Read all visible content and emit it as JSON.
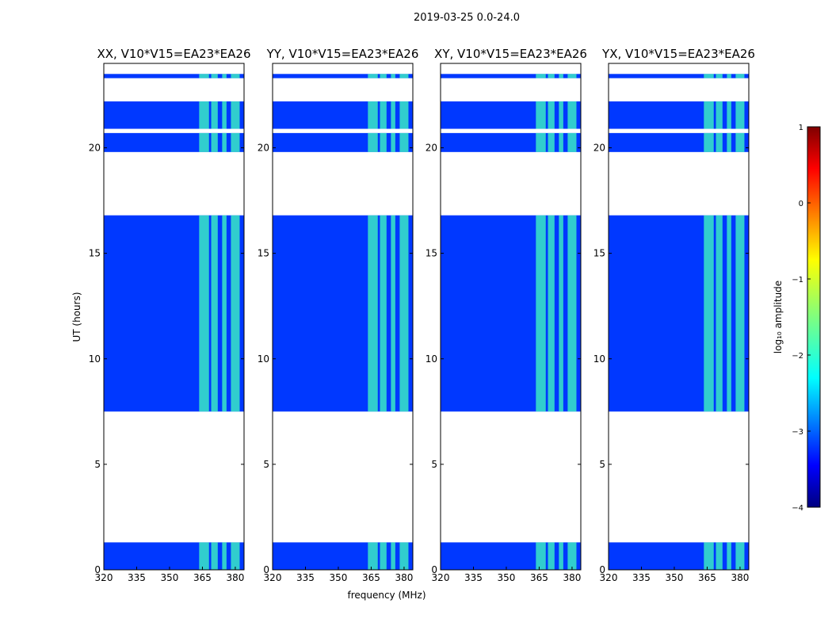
{
  "chart_data": {
    "type": "heatmap",
    "suptitle": "2019-03-25 0.0-24.0",
    "xlabel": "frequency (MHz)",
    "ylabel": "UT (hours)",
    "xlim": [
      320,
      384
    ],
    "ylim": [
      0,
      24
    ],
    "xticks": [
      320,
      335,
      350,
      365,
      380
    ],
    "yticks": [
      0,
      5,
      10,
      15,
      20
    ],
    "colorbar": {
      "label": "log₁₀ amplitude",
      "range": [
        -4,
        1
      ],
      "ticks": [
        1,
        0,
        -1,
        -2,
        -3,
        -4
      ],
      "colormap": [
        "#00007f",
        "#0000ff",
        "#007fff",
        "#00ffff",
        "#7fff7f",
        "#ffff00",
        "#ff7f00",
        "#ff0000",
        "#7f0000"
      ]
    },
    "panels": [
      {
        "title": "XX, V10*V15=EA23*EA26",
        "polarization": "XX"
      },
      {
        "title": "YY, V10*V15=EA23*EA26",
        "polarization": "YY"
      },
      {
        "title": "XY, V10*V15=EA23*EA26",
        "polarization": "XY"
      },
      {
        "title": "YX, V10*V15=EA23*EA26",
        "polarization": "YX"
      }
    ],
    "data_time_ranges_hours": [
      [
        0.0,
        1.3
      ],
      [
        7.5,
        16.8
      ],
      [
        19.8,
        20.7
      ],
      [
        20.9,
        22.2
      ],
      [
        23.3,
        23.5
      ]
    ],
    "bright_channel_groups_mhz": [
      [
        363.5,
        368
      ],
      [
        369,
        372
      ],
      [
        374,
        376
      ],
      [
        378,
        382
      ]
    ],
    "background_log_amplitude": -3.1,
    "bright_log_amplitude": -1.8
  }
}
